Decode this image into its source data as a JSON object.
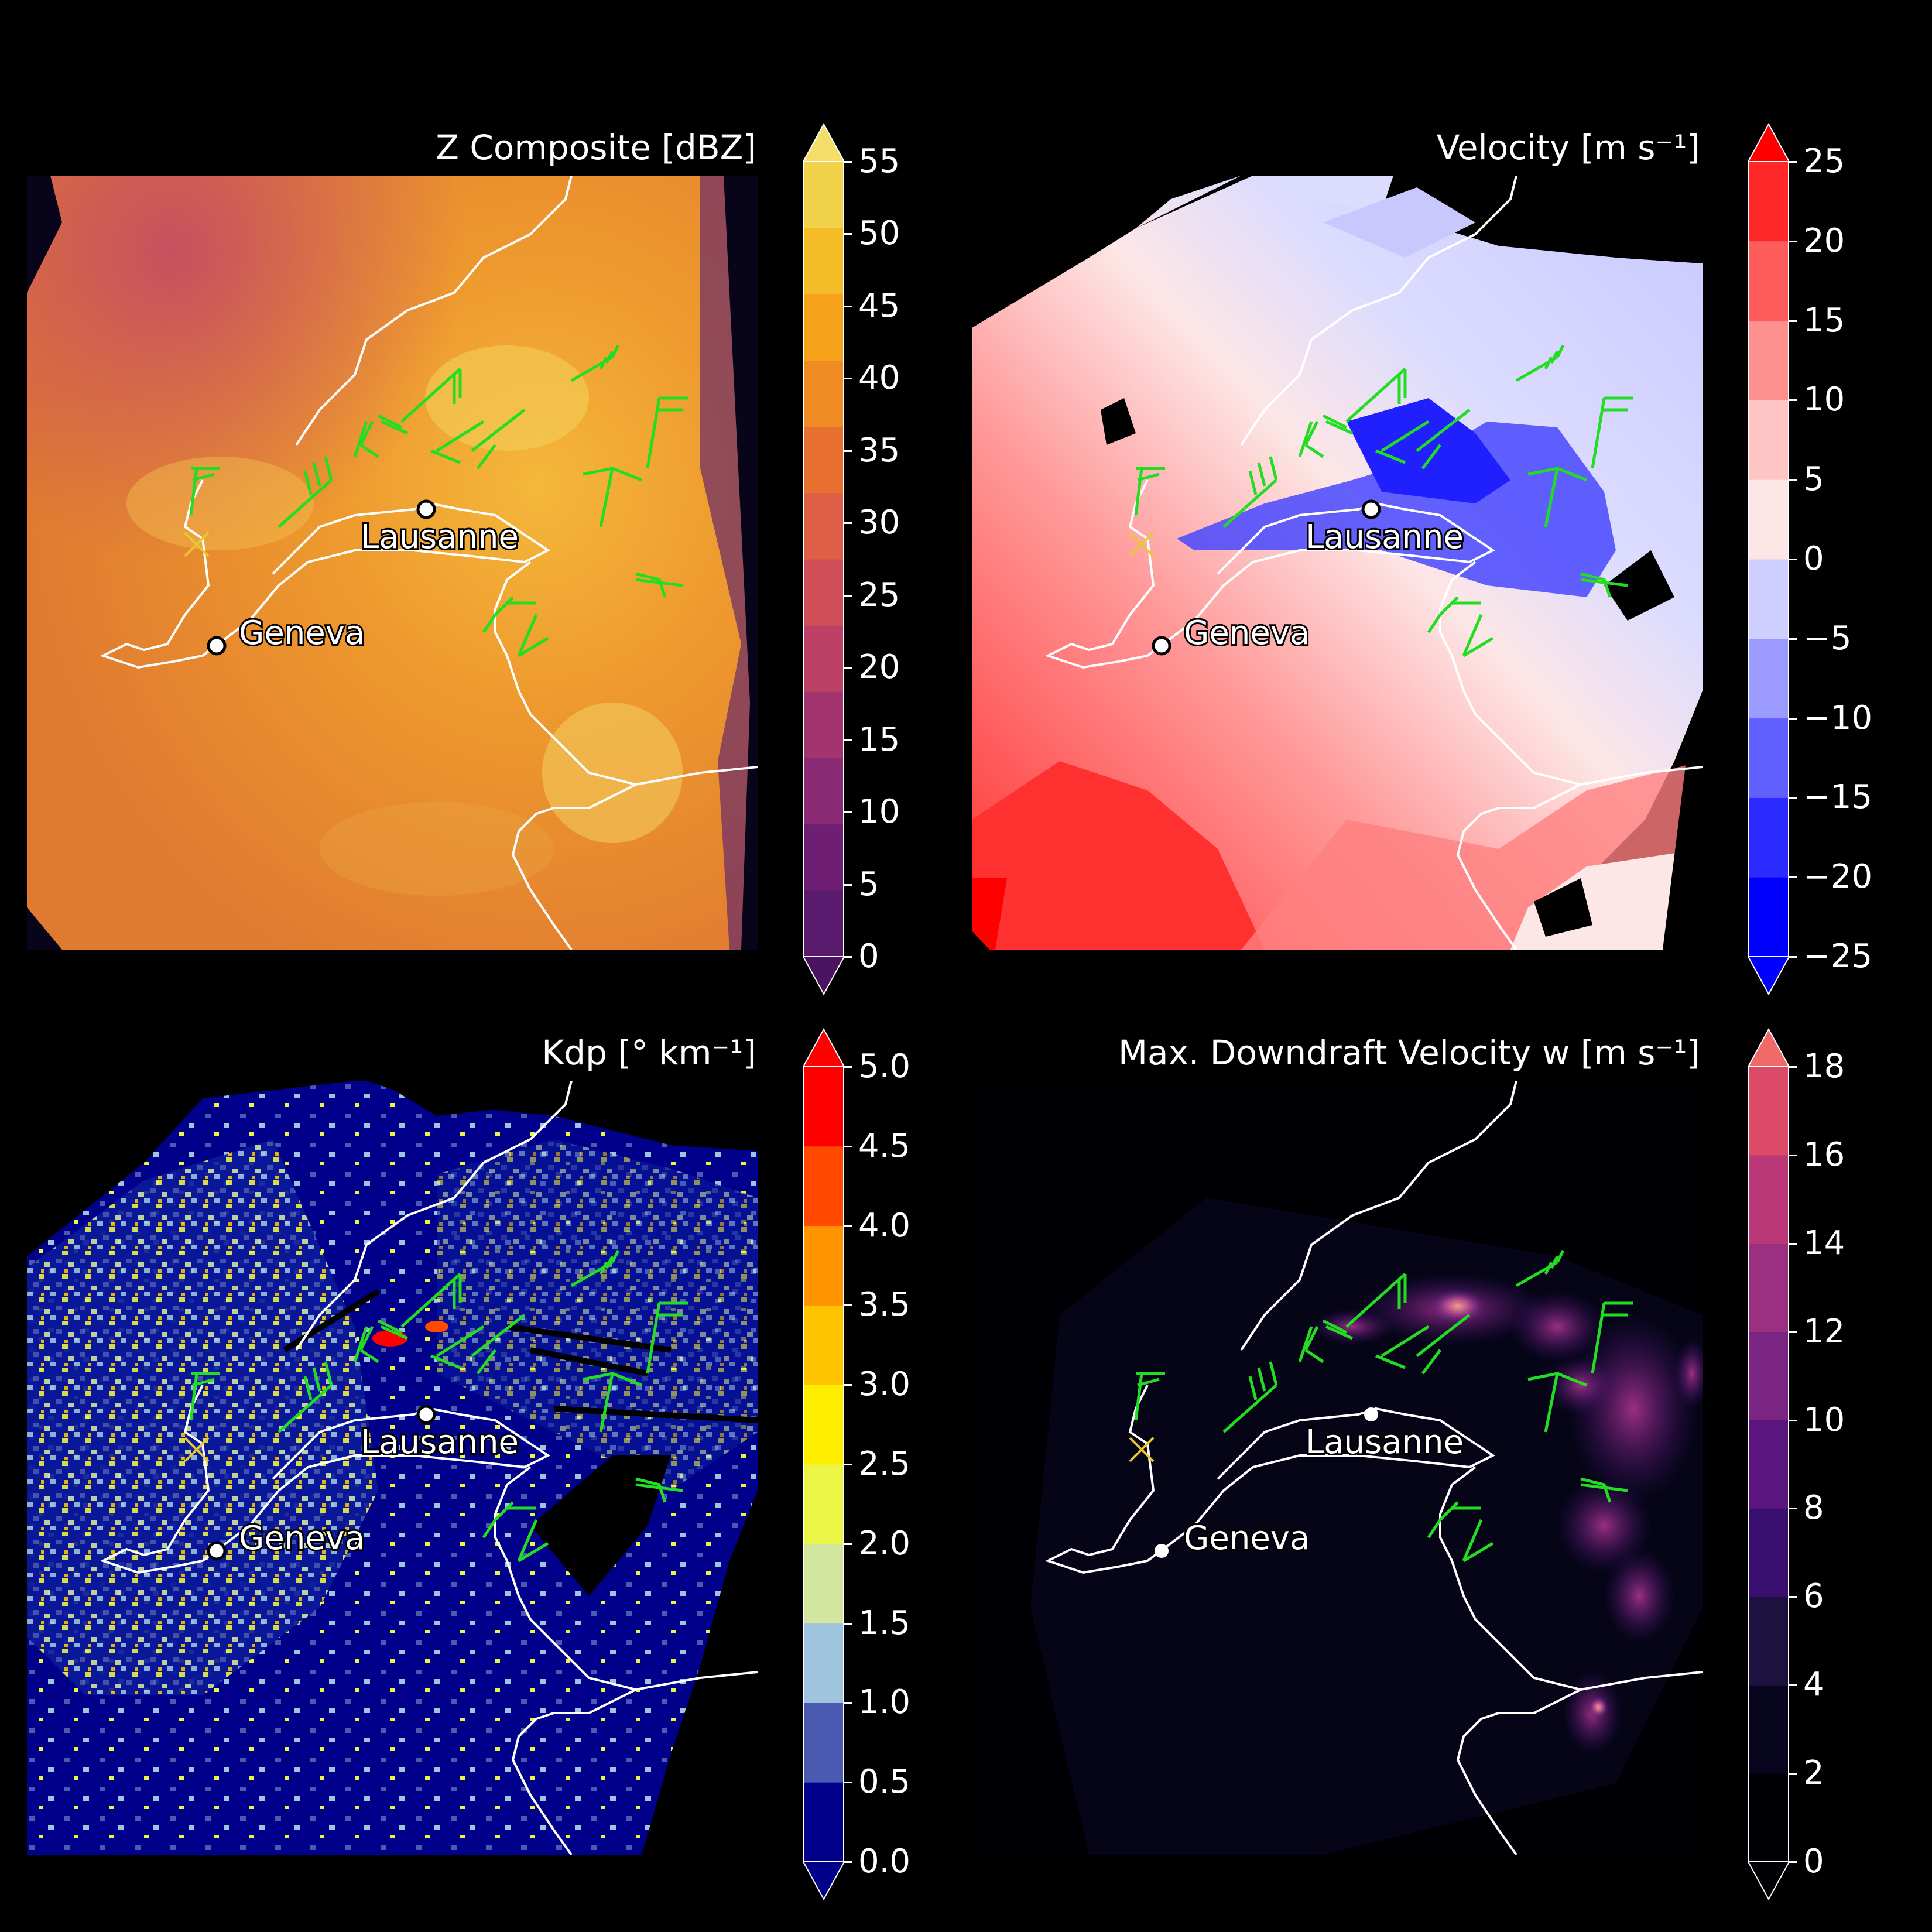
{
  "panels": [
    {
      "id": "z-composite",
      "title": "Z Composite [dBZ]",
      "colorbar": {
        "ticks": [
          "0",
          "5",
          "10",
          "15",
          "20",
          "25",
          "30",
          "35",
          "40",
          "45",
          "50",
          "55"
        ],
        "colors": [
          "#5a1a6e",
          "#6e1f73",
          "#8a2a74",
          "#a43470",
          "#bd4066",
          "#cf4e58",
          "#de5f45",
          "#e87132",
          "#f08a22",
          "#f5a21a",
          "#f4bd28",
          "#f2d24a"
        ],
        "extend": "both",
        "min_color": "#4a1362",
        "max_color": "#f3de6a"
      }
    },
    {
      "id": "velocity",
      "title": "Velocity [m s⁻¹]",
      "colorbar": {
        "ticks": [
          "−25",
          "−20",
          "−15",
          "−10",
          "−5",
          "0",
          "5",
          "10",
          "15",
          "20",
          "25"
        ],
        "colors": [
          "#0000ff",
          "#2b2bff",
          "#6060ff",
          "#9a9aff",
          "#cfcfff",
          "#fde6e6",
          "#ffc4c4",
          "#ff9090",
          "#ff5c5c",
          "#ff2828"
        ],
        "extend": "both",
        "min_color": "#0000ff",
        "max_color": "#ff0000"
      }
    },
    {
      "id": "kdp",
      "title": "Kdp [° km⁻¹]",
      "colorbar": {
        "ticks": [
          "0.0",
          "0.5",
          "1.0",
          "1.5",
          "2.0",
          "2.5",
          "3.0",
          "3.5",
          "4.0",
          "4.5",
          "5.0"
        ],
        "colors": [
          "#00008b",
          "#4a5ab0",
          "#9fc4de",
          "#d3e6a0",
          "#eaf545",
          "#ffed00",
          "#ffc400",
          "#ff9400",
          "#ff4a00",
          "#ff0000"
        ],
        "extend": "both",
        "min_color": "#00008b",
        "max_color": "#ff0000"
      }
    },
    {
      "id": "downdraft",
      "title": "Max. Downdraft Velocity w [m s⁻¹]",
      "colorbar": {
        "ticks": [
          "0",
          "2",
          "4",
          "6",
          "8",
          "10",
          "12",
          "14",
          "16",
          "18"
        ],
        "colors": [
          "#000004",
          "#08061e",
          "#1d1140",
          "#3b0f70",
          "#5a167e",
          "#7a2582",
          "#9b2f80",
          "#bb3878",
          "#dd4a68"
        ],
        "extend": "both",
        "min_color": "#000004",
        "max_color": "#f06a6a"
      }
    }
  ],
  "cities": [
    {
      "name": "Lausanne"
    },
    {
      "name": "Geneva"
    }
  ],
  "map_features": {
    "coastline_color": "#ffffff",
    "barb_color": "#22dd22",
    "radar_marker": "x",
    "radar_marker_color": "#e8c830"
  }
}
